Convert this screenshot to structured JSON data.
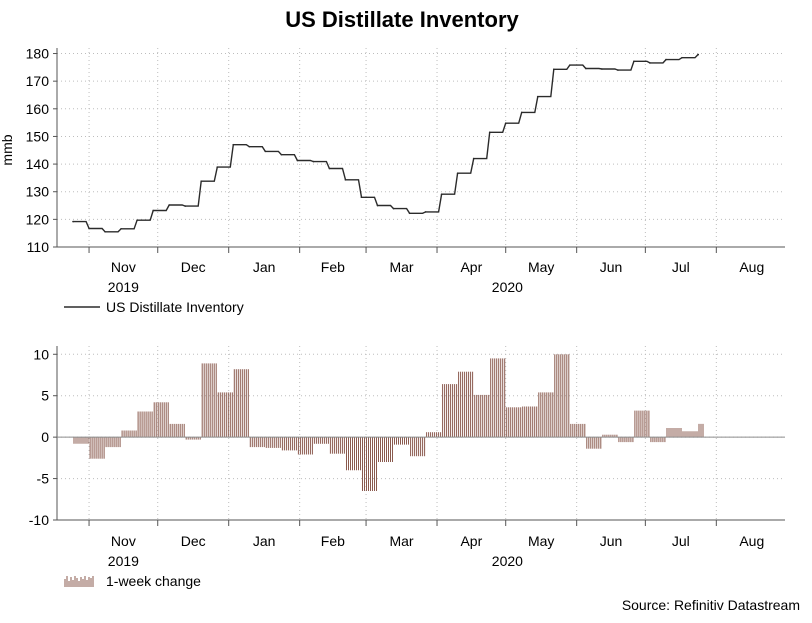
{
  "chart_data": [
    {
      "type": "line",
      "title": "US Distillate Inventory",
      "ylabel": "mmb",
      "xlabel": "",
      "ylim": [
        110,
        182
      ],
      "yticks": [
        110,
        120,
        130,
        140,
        150,
        160,
        170,
        180
      ],
      "month_labels": [
        "Nov",
        "Dec",
        "Jan",
        "Feb",
        "Mar",
        "Apr",
        "May",
        "Jun",
        "Jul",
        "Aug"
      ],
      "year_labels": [
        "2019",
        "2020"
      ],
      "legend": "US Distillate Inventory",
      "series": [
        {
          "name": "US Distillate Inventory",
          "color": "#2b2b2b",
          "x": [
            "2019-10-25",
            "2019-11-01",
            "2019-11-08",
            "2019-11-15",
            "2019-11-22",
            "2019-11-29",
            "2019-12-06",
            "2019-12-13",
            "2019-12-20",
            "2019-12-27",
            "2020-01-03",
            "2020-01-10",
            "2020-01-17",
            "2020-01-24",
            "2020-01-31",
            "2020-02-07",
            "2020-02-14",
            "2020-02-21",
            "2020-02-28",
            "2020-03-06",
            "2020-03-13",
            "2020-03-20",
            "2020-03-27",
            "2020-04-03",
            "2020-04-10",
            "2020-04-17",
            "2020-04-24",
            "2020-05-01",
            "2020-05-08",
            "2020-05-15",
            "2020-05-22",
            "2020-05-29",
            "2020-06-05",
            "2020-06-12",
            "2020-06-19",
            "2020-06-26",
            "2020-07-03",
            "2020-07-10",
            "2020-07-17",
            "2020-07-24"
          ],
          "values": [
            119.2,
            116.7,
            115.5,
            116.6,
            119.7,
            123.2,
            125.2,
            124.8,
            133.8,
            138.9,
            147.0,
            146.3,
            144.6,
            143.4,
            141.3,
            140.9,
            138.4,
            134.3,
            128.0,
            125.0,
            123.9,
            122.2,
            122.7,
            129.1,
            136.7,
            142.0,
            151.5,
            154.8,
            158.7,
            164.4,
            174.3,
            175.8,
            174.6,
            174.4,
            174.0,
            177.2,
            176.6,
            177.8,
            178.5,
            179.6
          ]
        }
      ]
    },
    {
      "type": "bar",
      "title": "",
      "ylabel": "",
      "xlabel": "",
      "ylim": [
        -10,
        11
      ],
      "yticks": [
        -10,
        -5,
        0,
        5,
        10
      ],
      "month_labels": [
        "Nov",
        "Dec",
        "Jan",
        "Feb",
        "Mar",
        "Apr",
        "May",
        "Jun",
        "Jul",
        "Aug"
      ],
      "year_labels": [
        "2019",
        "2020"
      ],
      "legend": "1-week change",
      "series": [
        {
          "name": "1-week change",
          "color": "#8a5a4e",
          "x": [
            "2019-10-25",
            "2019-11-01",
            "2019-11-08",
            "2019-11-15",
            "2019-11-22",
            "2019-11-29",
            "2019-12-06",
            "2019-12-13",
            "2019-12-20",
            "2019-12-27",
            "2020-01-03",
            "2020-01-10",
            "2020-01-17",
            "2020-01-24",
            "2020-01-31",
            "2020-02-07",
            "2020-02-14",
            "2020-02-21",
            "2020-02-28",
            "2020-03-06",
            "2020-03-13",
            "2020-03-20",
            "2020-03-27",
            "2020-04-03",
            "2020-04-10",
            "2020-04-17",
            "2020-04-24",
            "2020-05-01",
            "2020-05-08",
            "2020-05-15",
            "2020-05-22",
            "2020-05-29",
            "2020-06-05",
            "2020-06-12",
            "2020-06-19",
            "2020-06-26",
            "2020-07-03",
            "2020-07-10",
            "2020-07-17",
            "2020-07-24"
          ],
          "values": [
            -0.8,
            -2.6,
            -1.2,
            0.8,
            3.1,
            4.2,
            1.6,
            -0.3,
            8.9,
            5.4,
            8.2,
            -1.2,
            -1.3,
            -1.6,
            -2.1,
            -0.8,
            -2.0,
            -4.0,
            -6.5,
            -3.0,
            -0.9,
            -2.3,
            0.6,
            6.4,
            7.9,
            5.1,
            9.5,
            3.6,
            3.7,
            5.4,
            10.0,
            1.6,
            -1.4,
            0.3,
            -0.6,
            3.2,
            -0.6,
            1.1,
            0.7,
            1.6
          ]
        }
      ]
    }
  ],
  "source": "Source: Refinitiv Datastream"
}
